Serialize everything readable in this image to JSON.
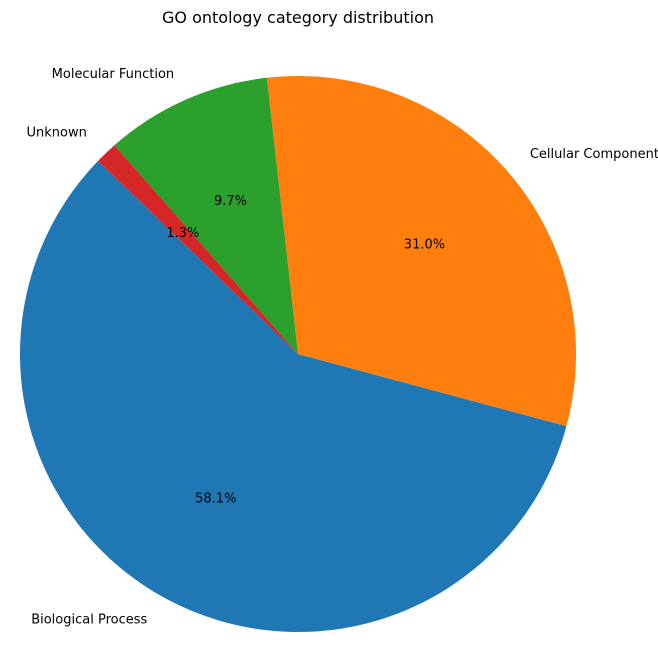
{
  "chart_data": {
    "type": "pie",
    "title": "GO ontology category distribution",
    "slices": [
      {
        "label": "Biological Process",
        "value": 58.1,
        "percent_label": "58.1%",
        "color": "#1f77b4"
      },
      {
        "label": "Cellular Component",
        "value": 31.0,
        "percent_label": "31.0%",
        "color": "#ff7f0e"
      },
      {
        "label": "Molecular Function",
        "value": 9.7,
        "percent_label": "9.7%",
        "color": "#2ca02c"
      },
      {
        "label": "Unknown",
        "value": 1.3,
        "percent_label": "1.3%",
        "color": "#d62728"
      }
    ],
    "start_angle_deg": 136,
    "direction": "counterclockwise",
    "legend": "none"
  }
}
